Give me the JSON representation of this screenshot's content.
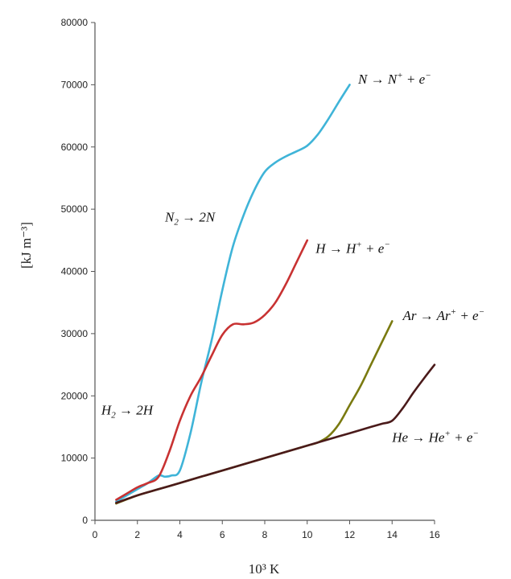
{
  "chart_data": {
    "type": "line",
    "title": "",
    "xlabel": "10³ K",
    "ylabel": "[kJ m⁻³]",
    "xlim": [
      0,
      16
    ],
    "ylim": [
      0,
      80000
    ],
    "x_ticks": [
      0,
      2,
      4,
      6,
      8,
      10,
      12,
      14,
      16
    ],
    "y_ticks": [
      0,
      10000,
      20000,
      30000,
      40000,
      50000,
      60000,
      70000,
      80000
    ],
    "grid": false,
    "legend": "none",
    "series": [
      {
        "color": "#3fb4d8",
        "x": [
          1,
          1.5,
          2,
          2.5,
          3,
          3.3,
          3.6,
          4,
          4.5,
          5,
          5.5,
          6,
          6.5,
          7,
          7.5,
          8,
          8.5,
          9,
          9.5,
          10,
          10.5,
          11,
          11.5,
          12
        ],
        "y": [
          3000,
          4000,
          5000,
          6000,
          7200,
          7000,
          7200,
          8000,
          14000,
          22000,
          29000,
          37000,
          44000,
          49000,
          53000,
          56000,
          57500,
          58500,
          59300,
          60200,
          62000,
          64500,
          67300,
          70000
        ]
      },
      {
        "color": "#c83232",
        "x": [
          1,
          1.5,
          2,
          2.5,
          3,
          3.5,
          4,
          4.5,
          5,
          5.5,
          6,
          6.5,
          7,
          7.5,
          8,
          8.5,
          9,
          9.5,
          10
        ],
        "y": [
          3300,
          4300,
          5300,
          6000,
          7000,
          11000,
          16000,
          20000,
          23000,
          26500,
          29800,
          31500,
          31500,
          31800,
          33000,
          35000,
          38000,
          41500,
          45000
        ]
      },
      {
        "color": "#7a7a10",
        "x": [
          1,
          2,
          3,
          4,
          5,
          6,
          7,
          8,
          9,
          10,
          10.5,
          11,
          11.5,
          12,
          12.5,
          13,
          13.5,
          14
        ],
        "y": [
          2700,
          4000,
          5000,
          6000,
          7000,
          8000,
          9000,
          10000,
          11000,
          12000,
          12500,
          13500,
          15500,
          18500,
          21500,
          25000,
          28500,
          32000
        ]
      },
      {
        "color": "#4a1a1a",
        "x": [
          1,
          2,
          3,
          4,
          5,
          6,
          7,
          8,
          9,
          10,
          11,
          12,
          13,
          13.5,
          14,
          14.5,
          15,
          15.5,
          16
        ],
        "y": [
          2800,
          4000,
          5000,
          6000,
          7000,
          8000,
          9000,
          10000,
          11000,
          12000,
          13000,
          14000,
          15000,
          15500,
          16000,
          18000,
          20500,
          22800,
          25000
        ]
      }
    ],
    "annotations": [
      {
        "left": "N",
        "right": "N",
        "sup": "+",
        "tail": " + e",
        "tail_sup": "−",
        "x": 12.4,
        "y": 70200
      },
      {
        "left": "N",
        "left_sub": "2",
        "right": "2N",
        "x": 3.3,
        "y": 48000
      },
      {
        "left": "H",
        "right": "H",
        "sup": "+",
        "tail": " + e",
        "tail_sup": "−",
        "x": 10.4,
        "y": 43000
      },
      {
        "left": "Ar",
        "right": "Ar",
        "sup": "+",
        "tail": " + e",
        "tail_sup": "−",
        "x": 14.5,
        "y": 32200
      },
      {
        "left": "H",
        "left_sub": "2",
        "right": "2H",
        "x": 0.3,
        "y": 17000
      },
      {
        "left": "He",
        "right": "He",
        "sup": "+",
        "tail": " + e",
        "tail_sup": "−",
        "x": 14,
        "y": 12600
      }
    ]
  }
}
